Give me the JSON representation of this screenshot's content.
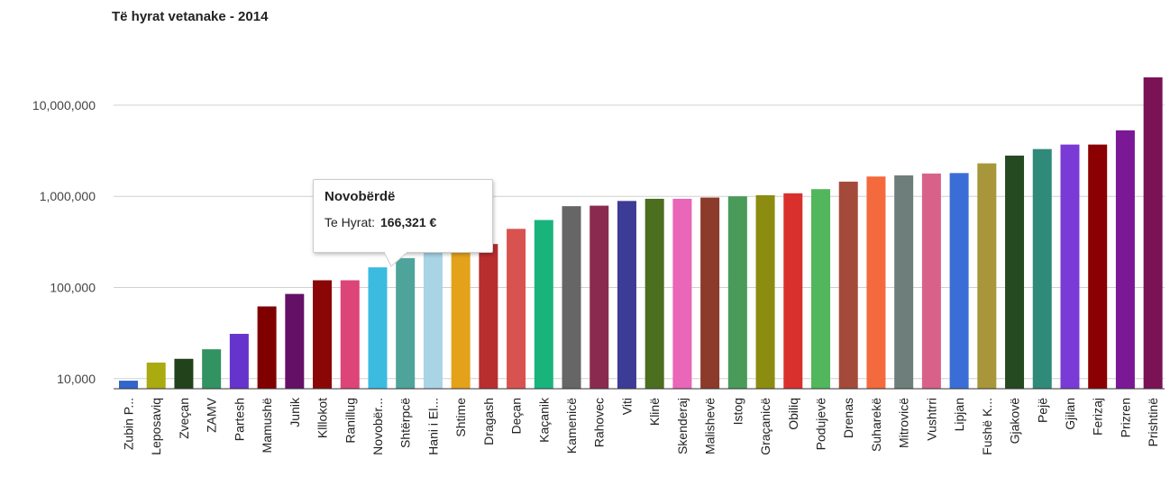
{
  "chart_data": {
    "type": "bar",
    "title": "Të hyrat vetanake - 2014",
    "xlabel": "",
    "ylabel": "",
    "yscale": "log",
    "ylim": [
      9000,
      23000000
    ],
    "yticks": [
      10000,
      100000,
      1000000,
      10000000
    ],
    "ytick_labels": [
      "10,000",
      "100,000",
      "1,000,000",
      "10,000,000"
    ],
    "grid": true,
    "legend": "none",
    "categories": [
      "Zubin P...",
      "Leposaviq",
      "Zveçan",
      "ZAMV",
      "Partesh",
      "Mamushë",
      "Junik",
      "Klllokot",
      "Ranillug",
      "Novobër...",
      "Shtërpcë",
      "Hani i El...",
      "Shtime",
      "Dragash",
      "Deçan",
      "Kaçanik",
      "Kamenicë",
      "Rahovec",
      "Viti",
      "Klinë",
      "Skenderaj",
      "Malishevë",
      "Istog",
      "Graçanicë",
      "Obiliq",
      "Podujevë",
      "Drenas",
      "Suharekë",
      "Mitrovicë",
      "Vushtrri",
      "Lipjan",
      "Fushë K...",
      "Gjakovë",
      "Pejë",
      "Gjilan",
      "Ferizaj",
      "Prizren",
      "Prishtinë"
    ],
    "values": [
      9500,
      15000,
      16500,
      21000,
      31000,
      62000,
      85000,
      120000,
      120000,
      166321,
      210000,
      260000,
      300000,
      300000,
      440000,
      550000,
      780000,
      790000,
      890000,
      940000,
      940000,
      970000,
      1000000,
      1030000,
      1080000,
      1200000,
      1450000,
      1650000,
      1700000,
      1780000,
      1800000,
      2300000,
      2800000,
      3300000,
      3700000,
      3700000,
      5300000,
      20500000
    ],
    "colors": [
      "#3366cc",
      "#aaaa11",
      "#22421b",
      "#329262",
      "#6633cc",
      "#800000",
      "#651067",
      "#8b0707",
      "#dd4477",
      "#3bbbdf",
      "#4ea39a",
      "#a8d4e6",
      "#e3a21a",
      "#b82e2e",
      "#d8534f",
      "#19b47c",
      "#666666",
      "#8b2a4f",
      "#3c3c96",
      "#4b6e1f",
      "#e966b8",
      "#8c3a2a",
      "#4a9a5a",
      "#8c8c10",
      "#d9302e",
      "#52b75c",
      "#a44a3a",
      "#f46a3c",
      "#6e7e7a",
      "#d8618a",
      "#3a6ed6",
      "#a8963a",
      "#254a22",
      "#2f8a7a",
      "#7a3ad6",
      "#8b0000",
      "#7a1896",
      "#7a1255"
    ],
    "tooltip": {
      "category": "Novobërdë",
      "label": "Te Hyrat:",
      "value": "166,321 €"
    }
  }
}
